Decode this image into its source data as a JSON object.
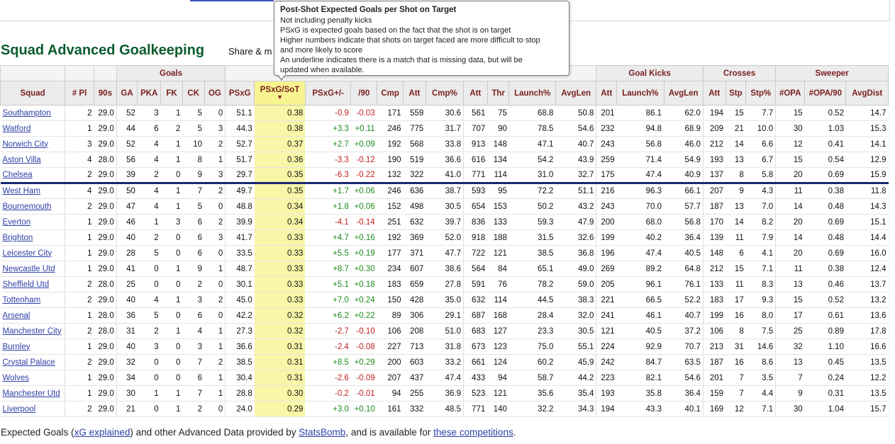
{
  "page": {
    "heading": "Squad Advanced Goalkeeping",
    "share_label": "Share & m"
  },
  "tooltip": {
    "title": "Post-Shot Expected Goals per Shot on Target",
    "lines": [
      "Not including penalty kicks",
      "PSxG is expected goals based on the fact that the shot is on target",
      "Higher numbers indicate that shots on target faced are more difficult to stop",
      "and more likely to score",
      "An underline indicates there is a match that is missing data, but will be",
      "updated when available."
    ]
  },
  "table": {
    "groups": {
      "goals": "Goals",
      "goal_kicks": "Goal Kicks",
      "crosses": "Crosses",
      "sweeper": "Sweeper"
    },
    "sort_arrow": "▼",
    "columns": [
      "Squad",
      "# Pl",
      "90s",
      "GA",
      "PKA",
      "FK",
      "CK",
      "OG",
      "PSxG",
      "PSxG/SoT",
      "PSxG+/-",
      "/90",
      "Cmp",
      "Att",
      "Cmp%",
      "Att",
      "Thr",
      "Launch%",
      "AvgLen",
      "Att",
      "Launch%",
      "AvgLen",
      "Att",
      "Stp",
      "Stp%",
      "#OPA",
      "#OPA/90",
      "AvgDist"
    ],
    "rows": [
      [
        "Southampton",
        "2",
        "29.0",
        "52",
        "3",
        "1",
        "5",
        "0",
        "51.1",
        "0.38",
        "-0.9",
        "-0.03",
        "171",
        "559",
        "30.6",
        "561",
        "75",
        "68.8",
        "50.8",
        "201",
        "86.1",
        "62.0",
        "194",
        "15",
        "7.7",
        "15",
        "0.52",
        "14.7"
      ],
      [
        "Watford",
        "1",
        "29.0",
        "44",
        "6",
        "2",
        "5",
        "3",
        "44.3",
        "0.38",
        "+3.3",
        "+0.11",
        "246",
        "775",
        "31.7",
        "707",
        "90",
        "78.5",
        "54.6",
        "232",
        "94.8",
        "68.9",
        "209",
        "21",
        "10.0",
        "30",
        "1.03",
        "15.3"
      ],
      [
        "Norwich City",
        "3",
        "29.0",
        "52",
        "4",
        "1",
        "10",
        "2",
        "52.7",
        "0.37",
        "+2.7",
        "+0.09",
        "192",
        "568",
        "33.8",
        "913",
        "148",
        "47.1",
        "40.7",
        "243",
        "56.8",
        "46.0",
        "212",
        "14",
        "6.6",
        "12",
        "0.41",
        "14.1"
      ],
      [
        "Aston Villa",
        "4",
        "28.0",
        "56",
        "4",
        "1",
        "8",
        "1",
        "51.7",
        "0.36",
        "-3.3",
        "-0.12",
        "190",
        "519",
        "36.6",
        "616",
        "134",
        "54.2",
        "43.9",
        "259",
        "71.4",
        "54.9",
        "193",
        "13",
        "6.7",
        "15",
        "0.54",
        "12.9"
      ],
      [
        "Chelsea",
        "2",
        "29.0",
        "39",
        "2",
        "0",
        "9",
        "3",
        "29.7",
        "0.35",
        "-6.3",
        "-0.22",
        "132",
        "322",
        "41.0",
        "771",
        "114",
        "31.0",
        "32.7",
        "175",
        "47.4",
        "40.9",
        "137",
        "8",
        "5.8",
        "20",
        "0.69",
        "15.9"
      ],
      [
        "West Ham",
        "4",
        "29.0",
        "50",
        "4",
        "1",
        "7",
        "2",
        "49.7",
        "0.35",
        "+1.7",
        "+0.06",
        "246",
        "636",
        "38.7",
        "593",
        "95",
        "72.2",
        "51.1",
        "216",
        "96.3",
        "66.1",
        "207",
        "9",
        "4.3",
        "11",
        "0.38",
        "11.8"
      ],
      [
        "Bournemouth",
        "2",
        "29.0",
        "47",
        "4",
        "1",
        "5",
        "0",
        "48.8",
        "0.34",
        "+1.8",
        "+0.06",
        "152",
        "498",
        "30.5",
        "654",
        "153",
        "50.2",
        "43.2",
        "243",
        "70.0",
        "57.7",
        "187",
        "13",
        "7.0",
        "14",
        "0.48",
        "14.3"
      ],
      [
        "Everton",
        "1",
        "29.0",
        "46",
        "1",
        "3",
        "6",
        "2",
        "39.9",
        "0.34",
        "-4.1",
        "-0.14",
        "251",
        "632",
        "39.7",
        "836",
        "133",
        "59.3",
        "47.9",
        "200",
        "68.0",
        "56.8",
        "170",
        "14",
        "8.2",
        "20",
        "0.69",
        "15.1"
      ],
      [
        "Brighton",
        "1",
        "29.0",
        "40",
        "2",
        "0",
        "6",
        "3",
        "41.7",
        "0.33",
        "+4.7",
        "+0.16",
        "192",
        "369",
        "52.0",
        "918",
        "188",
        "31.5",
        "32.6",
        "199",
        "40.2",
        "36.4",
        "139",
        "11",
        "7.9",
        "14",
        "0.48",
        "14.4"
      ],
      [
        "Leicester City",
        "1",
        "29.0",
        "28",
        "5",
        "0",
        "6",
        "0",
        "33.5",
        "0.33",
        "+5.5",
        "+0.19",
        "177",
        "371",
        "47.7",
        "722",
        "121",
        "38.5",
        "36.8",
        "196",
        "47.4",
        "40.5",
        "148",
        "6",
        "4.1",
        "20",
        "0.69",
        "16.0"
      ],
      [
        "Newcastle Utd",
        "1",
        "29.0",
        "41",
        "0",
        "1",
        "9",
        "1",
        "48.7",
        "0.33",
        "+8.7",
        "+0.30",
        "234",
        "607",
        "38.6",
        "564",
        "84",
        "65.1",
        "49.0",
        "269",
        "89.2",
        "64.8",
        "212",
        "15",
        "7.1",
        "11",
        "0.38",
        "12.4"
      ],
      [
        "Sheffield Utd",
        "2",
        "28.0",
        "25",
        "0",
        "0",
        "2",
        "0",
        "30.1",
        "0.33",
        "+5.1",
        "+0.18",
        "183",
        "659",
        "27.8",
        "591",
        "76",
        "78.2",
        "59.0",
        "205",
        "96.1",
        "76.1",
        "133",
        "11",
        "8.3",
        "13",
        "0.46",
        "13.7"
      ],
      [
        "Tottenham",
        "2",
        "29.0",
        "40",
        "4",
        "1",
        "3",
        "2",
        "45.0",
        "0.33",
        "+7.0",
        "+0.24",
        "150",
        "428",
        "35.0",
        "632",
        "114",
        "44.5",
        "38.3",
        "221",
        "66.5",
        "52.2",
        "183",
        "17",
        "9.3",
        "15",
        "0.52",
        "13.2"
      ],
      [
        "Arsenal",
        "1",
        "28.0",
        "36",
        "5",
        "0",
        "6",
        "0",
        "42.2",
        "0.32",
        "+6.2",
        "+0.22",
        "89",
        "306",
        "29.1",
        "687",
        "168",
        "28.4",
        "32.0",
        "241",
        "46.1",
        "40.7",
        "199",
        "16",
        "8.0",
        "17",
        "0.61",
        "13.6"
      ],
      [
        "Manchester City",
        "2",
        "28.0",
        "31",
        "2",
        "1",
        "4",
        "1",
        "27.3",
        "0.32",
        "-2.7",
        "-0.10",
        "106",
        "208",
        "51.0",
        "683",
        "127",
        "23.3",
        "30.5",
        "121",
        "40.5",
        "37.2",
        "106",
        "8",
        "7.5",
        "25",
        "0.89",
        "17.8"
      ],
      [
        "Burnley",
        "1",
        "29.0",
        "40",
        "3",
        "0",
        "3",
        "1",
        "36.6",
        "0.31",
        "-2.4",
        "-0.08",
        "227",
        "713",
        "31.8",
        "673",
        "123",
        "75.0",
        "55.1",
        "224",
        "92.9",
        "70.7",
        "213",
        "31",
        "14.6",
        "32",
        "1.10",
        "16.6"
      ],
      [
        "Crystal Palace",
        "2",
        "29.0",
        "32",
        "0",
        "0",
        "7",
        "2",
        "38.5",
        "0.31",
        "+8.5",
        "+0.29",
        "200",
        "603",
        "33.2",
        "661",
        "124",
        "60.2",
        "45.9",
        "242",
        "84.7",
        "63.5",
        "187",
        "16",
        "8.6",
        "13",
        "0.45",
        "13.5"
      ],
      [
        "Wolves",
        "1",
        "29.0",
        "34",
        "0",
        "0",
        "6",
        "1",
        "30.4",
        "0.31",
        "-2.6",
        "-0.09",
        "207",
        "437",
        "47.4",
        "433",
        "94",
        "58.7",
        "44.2",
        "223",
        "82.1",
        "54.6",
        "201",
        "7",
        "3.5",
        "7",
        "0.24",
        "12.2"
      ],
      [
        "Manchester Utd",
        "1",
        "29.0",
        "30",
        "1",
        "1",
        "7",
        "1",
        "28.8",
        "0.30",
        "-0.2",
        "-0.01",
        "94",
        "255",
        "36.9",
        "523",
        "121",
        "35.6",
        "35.4",
        "193",
        "35.8",
        "36.4",
        "159",
        "7",
        "4.4",
        "9",
        "0.31",
        "13.5"
      ],
      [
        "Liverpool",
        "2",
        "29.0",
        "21",
        "0",
        "1",
        "2",
        "0",
        "24.0",
        "0.29",
        "+3.0",
        "+0.10",
        "161",
        "332",
        "48.5",
        "771",
        "140",
        "32.2",
        "34.3",
        "194",
        "43.3",
        "40.1",
        "169",
        "12",
        "7.1",
        "30",
        "1.04",
        "15.7"
      ]
    ]
  },
  "footer": {
    "t1": "Expected Goals (",
    "l1": "xG explained",
    "t2": ") and other Advanced Data provided by ",
    "l2": "StatsBomb",
    "t3": ", and is available for ",
    "l3": "these competitions",
    "t4": "."
  },
  "colors": {
    "heading": "#0a5c2d",
    "header_text": "#7a2020",
    "highlight": "#f9f6a8",
    "link": "#2e3fa6",
    "negative": "#c02020",
    "positive": "#1d8a1d"
  }
}
